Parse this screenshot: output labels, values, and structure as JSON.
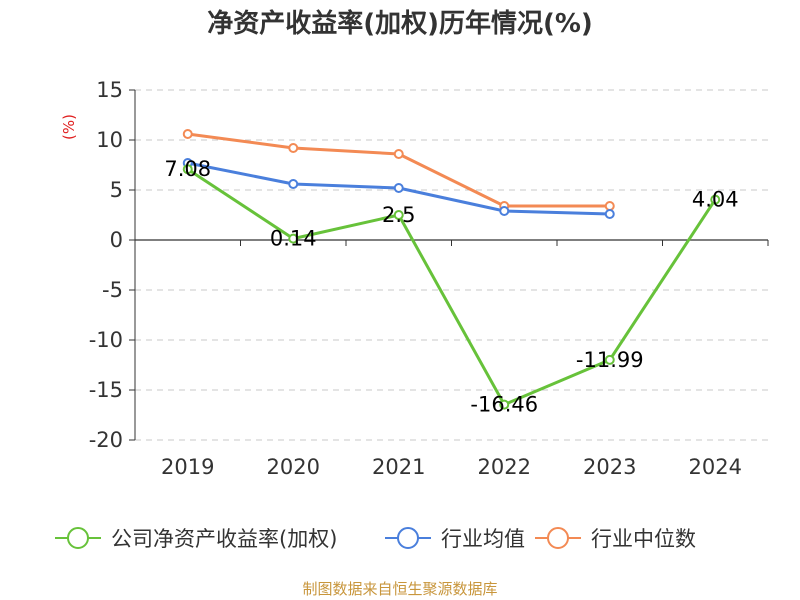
{
  "chart_data": {
    "type": "line",
    "title": "净资产收益率(加权)历年情况(%)",
    "ylabel": "(%)",
    "xlabel": "",
    "categories": [
      "2019",
      "2020",
      "2021",
      "2022",
      "2023",
      "2024"
    ],
    "ylim": [
      -20,
      15
    ],
    "yticks": [
      "15",
      "10",
      "5",
      "0",
      "-5",
      "-10",
      "-15",
      "-20"
    ],
    "grid": true,
    "legend_position": "bottom",
    "series": [
      {
        "name": "公司净资产收益率(加权)",
        "color": "#67c23a",
        "values": [
          7.08,
          0.14,
          2.5,
          -16.46,
          -11.99,
          4.04
        ],
        "labels": [
          "7.08",
          "0.14",
          "2.5",
          "-16.46",
          "-11.99",
          "4.04"
        ]
      },
      {
        "name": "行业均值",
        "color": "#4a7fdc",
        "values": [
          7.7,
          5.6,
          5.2,
          2.9,
          2.6,
          null
        ]
      },
      {
        "name": "行业中位数",
        "color": "#f38a54",
        "values": [
          10.6,
          9.2,
          8.6,
          3.4,
          3.4,
          null
        ]
      }
    ]
  },
  "source": "制图数据来自恒生聚源数据库"
}
